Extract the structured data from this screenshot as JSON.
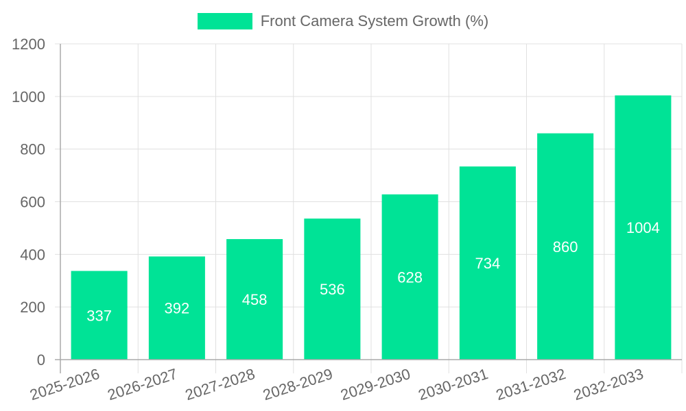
{
  "chart_data": {
    "type": "bar",
    "title": "",
    "legend": [
      "Front Camera System Growth (%)"
    ],
    "legend_position": "top",
    "categories": [
      "2025-2026",
      "2026-2027",
      "2027-2028",
      "2028-2029",
      "2029-2030",
      "2030-2031",
      "2031-2032",
      "2032-2033"
    ],
    "series": [
      {
        "name": "Front Camera System Growth (%)",
        "values": [
          337,
          392,
          458,
          536,
          628,
          734,
          860,
          1004
        ],
        "color": "#00E396"
      }
    ],
    "xlabel": "",
    "ylabel": "",
    "ylim": [
      0,
      1200
    ],
    "yticks": [
      0,
      200,
      400,
      600,
      800,
      1000,
      1200
    ],
    "grid": true,
    "data_labels": true
  },
  "legend": {
    "label": "Front Camera System Growth (%)",
    "color": "#00E396"
  }
}
